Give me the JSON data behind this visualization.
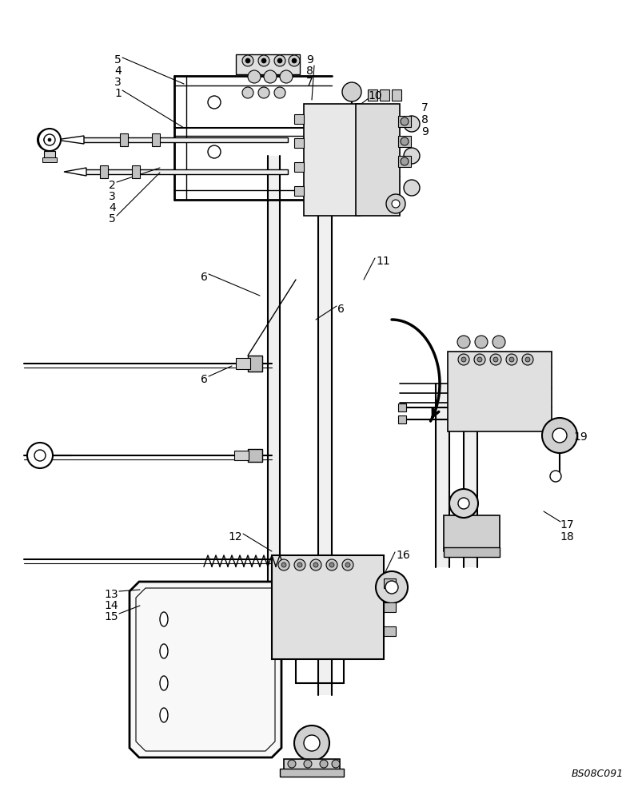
{
  "bg_color": "#ffffff",
  "lc": "#000000",
  "fig_width": 8.04,
  "fig_height": 10.0,
  "dpi": 100,
  "watermark": "BS08C091",
  "xlim": [
    0,
    804
  ],
  "ylim": [
    0,
    1000
  ]
}
